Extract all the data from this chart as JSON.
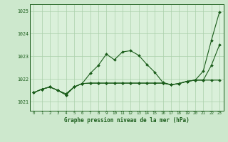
{
  "title": "Graphe pression niveau de la mer (hPa)",
  "background_color": "#cde8cd",
  "plot_bg_color": "#daf0da",
  "grid_color": "#aacfaa",
  "line_color": "#1a5c1a",
  "marker_color": "#1a5c1a",
  "xlim": [
    -0.5,
    23.5
  ],
  "ylim": [
    1020.6,
    1025.3
  ],
  "yticks": [
    1021,
    1022,
    1023,
    1024,
    1025
  ],
  "xticks": [
    0,
    1,
    2,
    3,
    4,
    5,
    6,
    7,
    8,
    9,
    10,
    11,
    12,
    13,
    14,
    15,
    16,
    17,
    18,
    19,
    20,
    21,
    22,
    23
  ],
  "series": [
    [
      1021.4,
      1021.55,
      1021.65,
      1021.5,
      1021.35,
      1021.65,
      1021.8,
      1022.2,
      1022.6,
      1023.1,
      1022.85,
      1023.2,
      1023.25,
      1023.05,
      1022.6,
      1022.3,
      1021.85,
      1021.75,
      1021.8,
      1021.9,
      1021.95,
      1022.35,
      1023.7,
      1024.95
    ],
    [
      1021.4,
      1021.55,
      1021.65,
      1021.5,
      1021.35,
      1021.65,
      1021.8,
      1021.8,
      1021.8,
      1021.8,
      1021.8,
      1021.8,
      1021.8,
      1021.8,
      1021.8,
      1021.8,
      1021.8,
      1021.75,
      1021.8,
      1021.9,
      1021.95,
      1021.95,
      1022.0,
      1021.9
    ],
    [
      1021.4,
      1021.55,
      1021.65,
      1021.5,
      1021.35,
      1021.65,
      1021.8,
      1021.8,
      1021.8,
      1021.8,
      1021.8,
      1021.8,
      1021.8,
      1021.8,
      1021.8,
      1021.8,
      1021.8,
      1021.75,
      1021.8,
      1021.9,
      1021.95,
      1021.95,
      1022.6,
      1023.5
    ]
  ],
  "series2": [
    [
      1021.4,
      1021.55,
      1021.65,
      1021.5,
      1021.3,
      1021.65,
      1021.8,
      1022.25,
      1022.6,
      1023.05,
      1022.85,
      1023.25,
      1023.25,
      1023.05,
      1022.6,
      1022.35,
      1021.85,
      1021.75,
      1021.8,
      1021.9,
      1021.95,
      1022.35,
      1023.7,
      1024.95
    ]
  ]
}
